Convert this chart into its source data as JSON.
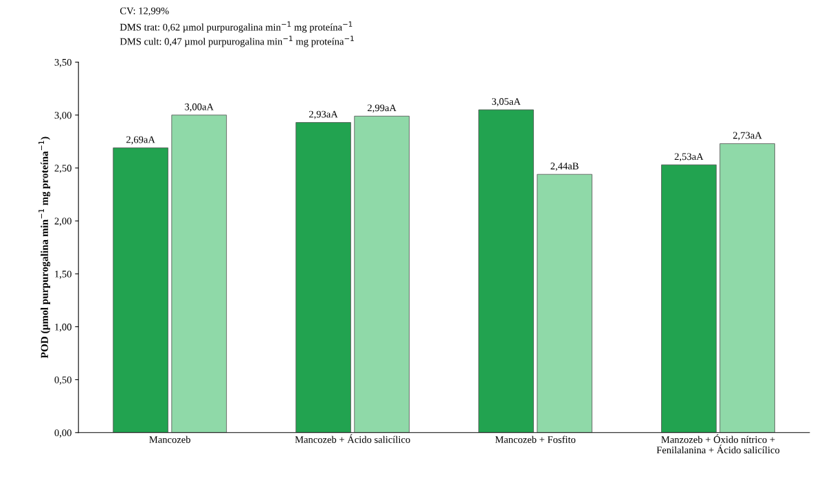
{
  "chart_data": {
    "type": "bar",
    "ylabel": "POD (µmol purpurogalina min$^{−1}$ mg proteína$^{−1}$)",
    "annotations": [
      "CV: 12,99%",
      "DMS trat: 0,62 µmol purpurogalina min$^{−1}$ mg proteína$^{−1}$",
      "DMS cult: 0,47 µmol purpurogalina min$^{−1}$ mg proteína$^{−1}$"
    ],
    "categories": [
      "Mancozeb",
      "Mancozeb + Ácido salicílico",
      "Mancozeb + Fosfito",
      "Manzozeb + Óxido nítrico +\nFenilalanina + Ácido salicílico"
    ],
    "series": [
      {
        "color": "#22a350",
        "values": [
          2.69,
          2.93,
          3.05,
          2.53
        ],
        "value_labels": [
          "2,69aA",
          "2,93aA",
          "3,05aA",
          "2,53aA"
        ]
      },
      {
        "color": "#8fd9a8",
        "values": [
          3.0,
          2.99,
          2.44,
          2.73
        ],
        "value_labels": [
          "3,00aA",
          "2,99aA",
          "2,44aB",
          "2,73aA"
        ]
      }
    ],
    "ylim": [
      0,
      3.5
    ],
    "yticks": [
      {
        "value": 0,
        "label": "0,00"
      },
      {
        "value": 0.5,
        "label": "0,50"
      },
      {
        "value": 1,
        "label": "1,00"
      },
      {
        "value": 1.5,
        "label": "1,50"
      },
      {
        "value": 2,
        "label": "2,00"
      },
      {
        "value": 2.5,
        "label": "2,50"
      },
      {
        "value": 3,
        "label": "3,00"
      },
      {
        "value": 3.5,
        "label": "3,50"
      }
    ],
    "grid": false
  }
}
